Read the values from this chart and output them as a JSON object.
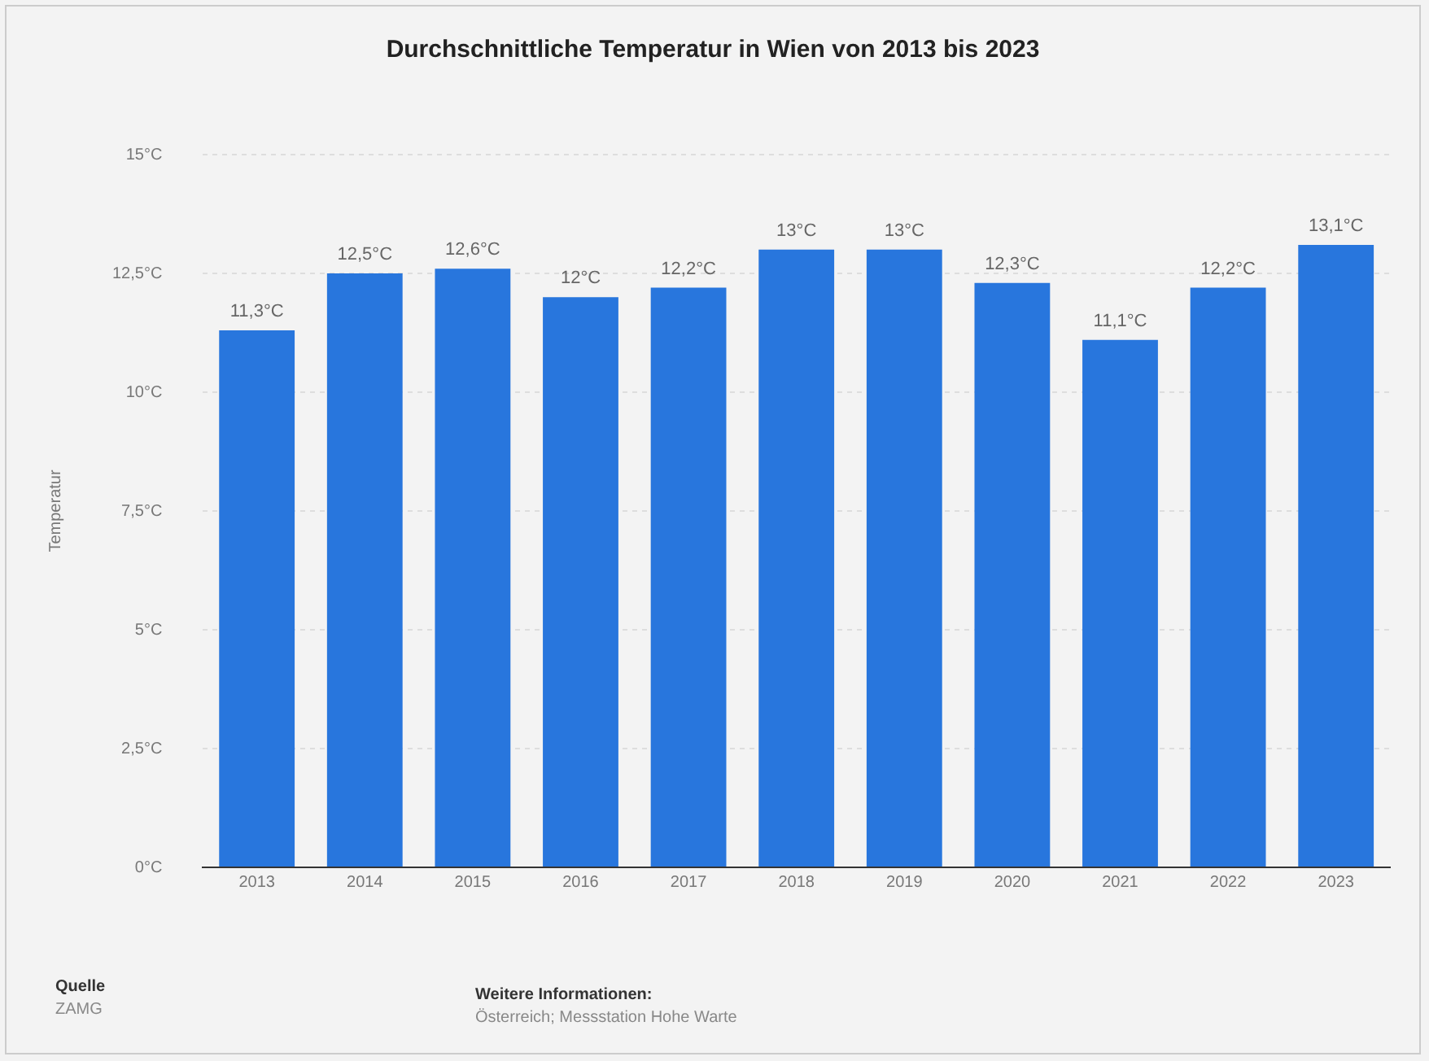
{
  "chart_data": {
    "type": "bar",
    "title": "Durchschnittliche Temperatur in Wien von 2013 bis 2023",
    "ylabel": "Temperatur",
    "categories": [
      "2013",
      "2014",
      "2015",
      "2016",
      "2017",
      "2018",
      "2019",
      "2020",
      "2021",
      "2022",
      "2023"
    ],
    "values": [
      11.3,
      12.5,
      12.6,
      12,
      12.2,
      13,
      13,
      12.3,
      11.1,
      12.2,
      13.1
    ],
    "value_labels": [
      "11,3°C",
      "12,5°C",
      "12,6°C",
      "12°C",
      "12,2°C",
      "13°C",
      "13°C",
      "12,3°C",
      "11,1°C",
      "12,2°C",
      "13,1°C"
    ],
    "color": "#2876dd",
    "ylim": [
      0,
      15
    ],
    "yticks": [
      {
        "value": 0,
        "label": "0°C"
      },
      {
        "value": 2.5,
        "label": "2,5°C"
      },
      {
        "value": 5,
        "label": "5°C"
      },
      {
        "value": 7.5,
        "label": "7,5°C"
      },
      {
        "value": 10,
        "label": "10°C"
      },
      {
        "value": 12.5,
        "label": "12,5°C"
      },
      {
        "value": 15,
        "label": "15°C"
      }
    ],
    "grid": "y",
    "legend": false,
    "annotations": [
      "Quelle",
      "ZAMG",
      "Weitere Informationen:",
      "Österreich; Messstation Hohe Warte"
    ]
  }
}
